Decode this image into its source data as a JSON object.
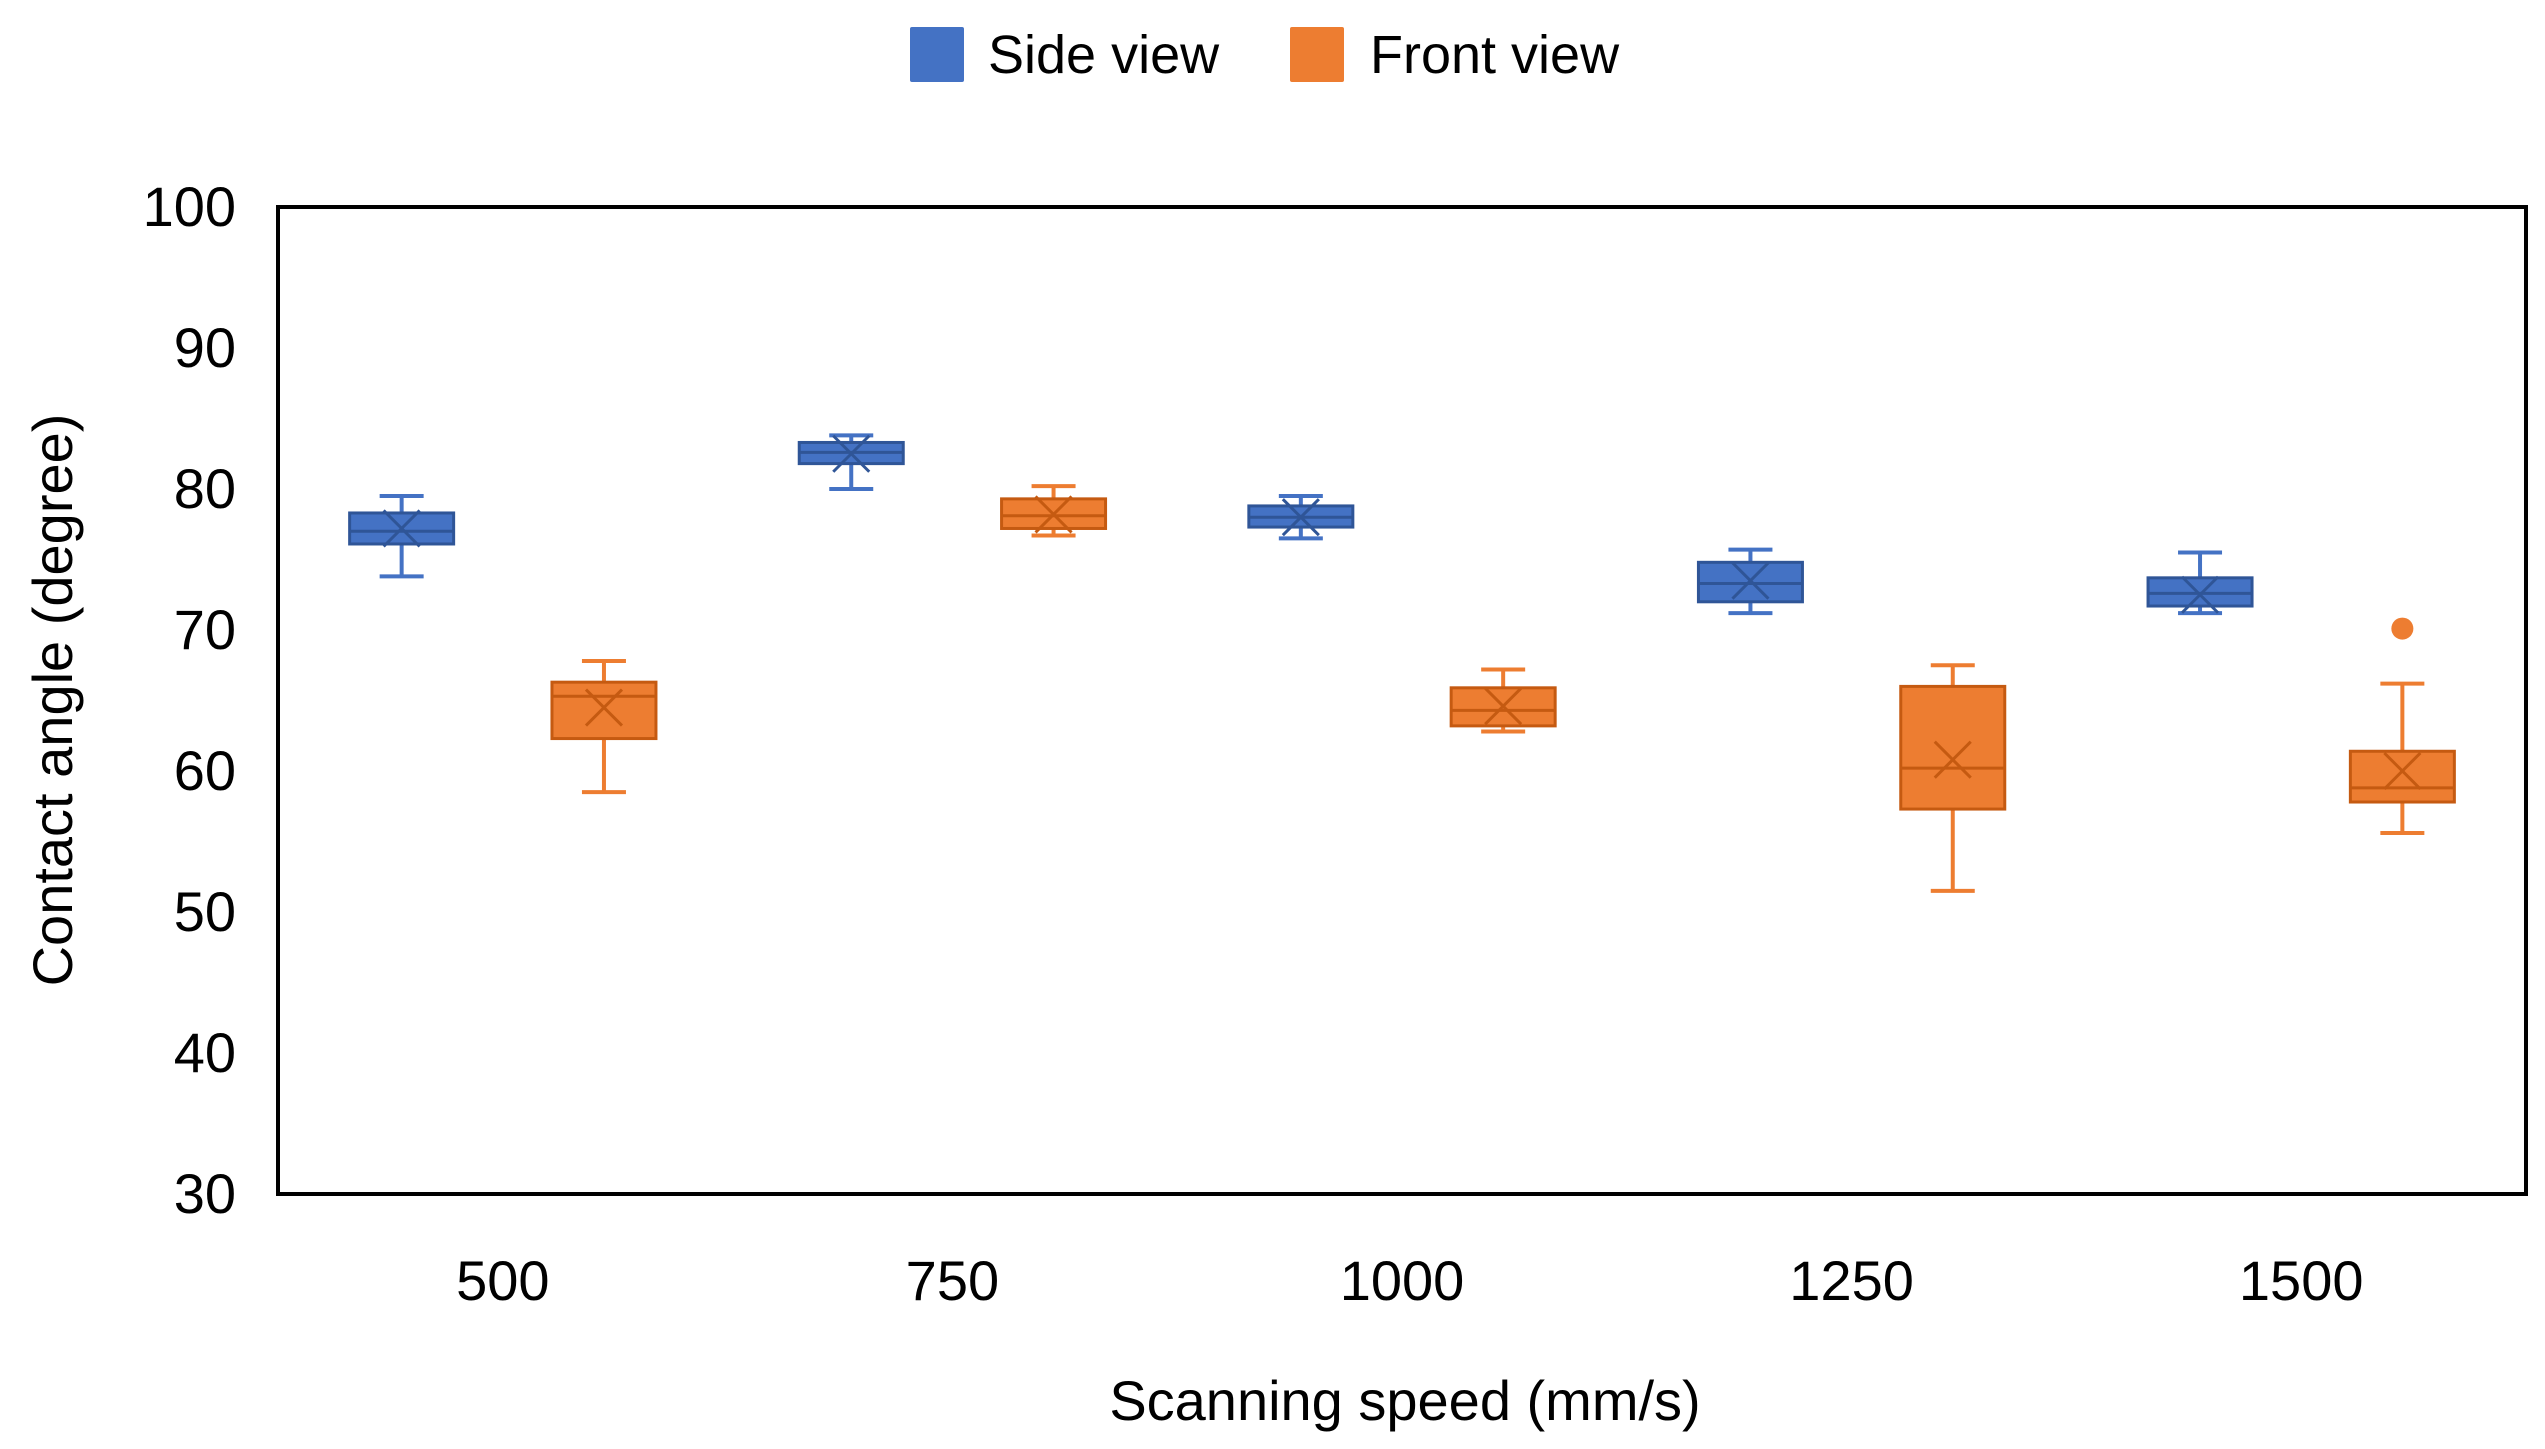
{
  "chart_data": {
    "type": "box",
    "title": "",
    "xlabel": "Scanning speed (mm/s)",
    "ylabel": "Contact angle (degree)",
    "ylim": [
      30,
      100
    ],
    "yticks": [
      30,
      40,
      50,
      60,
      70,
      80,
      90,
      100
    ],
    "grid": false,
    "legend_position": "top-center",
    "categories": [
      "500",
      "750",
      "1000",
      "1250",
      "1500"
    ],
    "series": [
      {
        "name": "Side view",
        "color": "#4472C4",
        "boxes": [
          {
            "whisker_low": 73.8,
            "q1": 76.1,
            "median": 77.0,
            "mean": 77.2,
            "q3": 78.3,
            "whisker_high": 79.5,
            "outliers": []
          },
          {
            "whisker_low": 80.0,
            "q1": 81.8,
            "median": 82.6,
            "mean": 82.5,
            "q3": 83.3,
            "whisker_high": 83.8,
            "outliers": []
          },
          {
            "whisker_low": 76.5,
            "q1": 77.3,
            "median": 78.0,
            "mean": 78.0,
            "q3": 78.8,
            "whisker_high": 79.5,
            "outliers": []
          },
          {
            "whisker_low": 71.2,
            "q1": 72.0,
            "median": 73.3,
            "mean": 73.5,
            "q3": 74.8,
            "whisker_high": 75.7,
            "outliers": []
          },
          {
            "whisker_low": 71.2,
            "q1": 71.7,
            "median": 72.6,
            "mean": 72.5,
            "q3": 73.7,
            "whisker_high": 75.5,
            "outliers": []
          }
        ]
      },
      {
        "name": "Front view",
        "color": "#ED7D31",
        "boxes": [
          {
            "whisker_low": 58.5,
            "q1": 62.3,
            "median": 65.3,
            "mean": 64.5,
            "q3": 66.3,
            "whisker_high": 67.8,
            "outliers": []
          },
          {
            "whisker_low": 76.7,
            "q1": 77.2,
            "median": 78.1,
            "mean": 78.2,
            "q3": 79.3,
            "whisker_high": 80.2,
            "outliers": []
          },
          {
            "whisker_low": 62.8,
            "q1": 63.2,
            "median": 64.3,
            "mean": 64.6,
            "q3": 65.9,
            "whisker_high": 67.2,
            "outliers": []
          },
          {
            "whisker_low": 51.5,
            "q1": 57.3,
            "median": 60.2,
            "mean": 60.8,
            "q3": 66.0,
            "whisker_high": 67.5,
            "outliers": []
          },
          {
            "whisker_low": 55.6,
            "q1": 57.8,
            "median": 58.8,
            "mean": 60.0,
            "q3": 61.4,
            "whisker_high": 66.2,
            "outliers": [
              70.1
            ]
          }
        ]
      }
    ]
  }
}
